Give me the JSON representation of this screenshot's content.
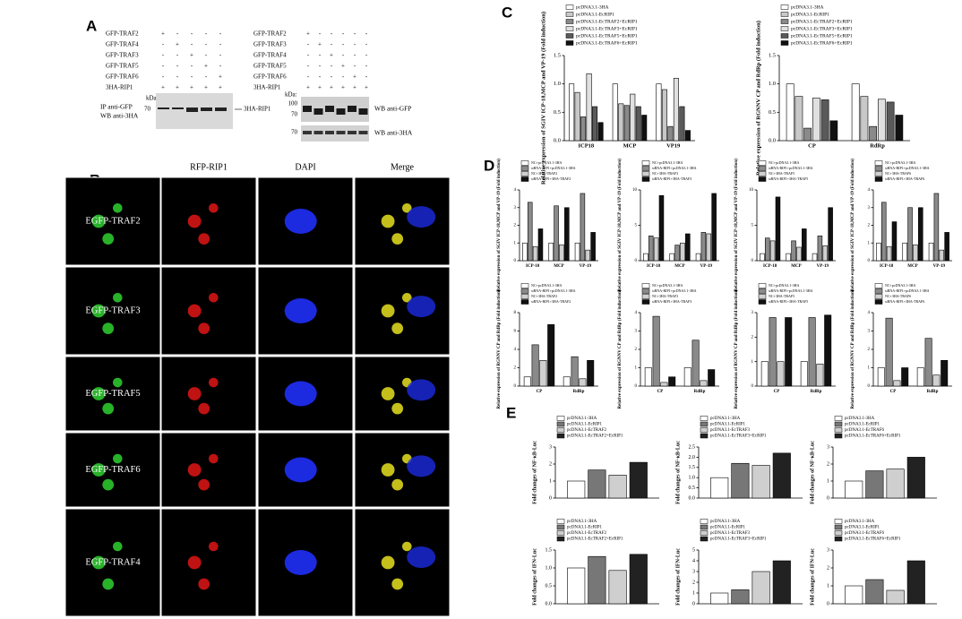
{
  "panel_labels": [
    "A",
    "B",
    "C",
    "D",
    "E"
  ],
  "blot_left": {
    "rows": [
      {
        "name": "GFP-TRAF2",
        "signs": [
          "+",
          "-",
          "-",
          "-",
          "-"
        ]
      },
      {
        "name": "GFP-TRAF4",
        "signs": [
          "-",
          "+",
          "-",
          "-",
          "-"
        ]
      },
      {
        "name": "GFP-TRAF3",
        "signs": [
          "-",
          "-",
          "+",
          "-",
          "-"
        ]
      },
      {
        "name": "GFP-TRAF5",
        "signs": [
          "-",
          "-",
          "-",
          "+",
          "-"
        ]
      },
      {
        "name": "GFP-TRAF6",
        "signs": [
          "-",
          "-",
          "-",
          "-",
          "+"
        ]
      },
      {
        "name": "3HA-RIP1",
        "signs": [
          "+",
          "+",
          "+",
          "+",
          "+"
        ]
      }
    ],
    "kda": "kDa:",
    "marker": "70",
    "ip": "IP anti-GFP",
    "wb": "WB anti-3HA",
    "band": "3HA-RIP1"
  },
  "blot_right": {
    "rows": [
      {
        "name": "GFP-TRAF2",
        "signs": [
          "+",
          "-",
          "-",
          "-",
          "-",
          "-"
        ]
      },
      {
        "name": "GFP-TRAF3",
        "signs": [
          "-",
          "+",
          "-",
          "-",
          "-",
          "-"
        ]
      },
      {
        "name": "GFP-TRAF4",
        "signs": [
          "-",
          "-",
          "+",
          "-",
          "-",
          "-"
        ]
      },
      {
        "name": "GFP-TRAF5",
        "signs": [
          "-",
          "-",
          "-",
          "+",
          "-",
          "-"
        ]
      },
      {
        "name": "GFP-TRAF6",
        "signs": [
          "-",
          "-",
          "-",
          "-",
          "+",
          "-"
        ]
      },
      {
        "name": "3HA-RIP1",
        "signs": [
          "+",
          "+",
          "+",
          "+",
          "+",
          "+"
        ]
      }
    ],
    "kda": "kDa:",
    "markers_top": [
      "100",
      "70"
    ],
    "wb_top": "WB anti-GFP",
    "marker_bottom": "70",
    "wb_bottom": "WB anti-3HA"
  },
  "microscopy": {
    "columns": [
      "RFP-RIP1",
      "DAPI",
      "Merge"
    ],
    "rows": [
      "EGFP-TRAF2",
      "EGFP-TRAF3",
      "EGFP-TRAF5",
      "EGFP-TRAF6",
      "EGFP-TRAF4"
    ]
  },
  "chart_data": [
    {
      "type": "bar",
      "y_label": "Relative expression of SGIV ICP-18,MCP and VP-19 (Fold induction)",
      "categories": [
        "ICP18",
        "MCP",
        "VP19"
      ],
      "ylim": [
        0,
        1.5
      ],
      "yticks": [
        {
          "value": 0,
          "label": "0.0"
        },
        {
          "value": 0.5,
          "label": "0.5"
        },
        {
          "value": 1,
          "label": "1.0"
        },
        {
          "value": 1.5,
          "label": "1.5"
        }
      ],
      "series": [
        {
          "name": "pcDNA3.1-3HA",
          "color": "#ffffff",
          "values": [
            1.0,
            1.0,
            1.0
          ]
        },
        {
          "name": "pcDNA3.1-EcRIP1",
          "color": "#c8c8c8",
          "values": [
            0.85,
            0.65,
            0.9
          ]
        },
        {
          "name": "pcDNA3.1-EcTRAF2+EcRIP1",
          "color": "#8a8a8a",
          "values": [
            0.42,
            0.62,
            0.25
          ]
        },
        {
          "name": "pcDNA3.1-EcTRAF3+EcRIP1",
          "color": "#e0e0e0",
          "values": [
            1.18,
            0.82,
            1.1
          ]
        },
        {
          "name": "pcDNA3.1-EcTRAF5+EcRIP1",
          "color": "#5a5a5a",
          "values": [
            0.6,
            0.6,
            0.6
          ]
        },
        {
          "name": "pcDNA3.1-EcTRAF6+EcRIP1",
          "color": "#111111",
          "values": [
            0.32,
            0.45,
            0.18
          ]
        }
      ]
    },
    {
      "type": "bar",
      "y_label": "Relative expression of RGNNV CP and RdRp (Fold induction)",
      "categories": [
        "CP",
        "RdRp"
      ],
      "ylim": [
        0,
        1.5
      ],
      "yticks": [
        {
          "value": 0,
          "label": "0.0"
        },
        {
          "value": 0.5,
          "label": "0.5"
        },
        {
          "value": 1,
          "label": "1.0"
        },
        {
          "value": 1.5,
          "label": "1.5"
        }
      ],
      "series": [
        {
          "name": "pcDNA3.1-3HA",
          "color": "#ffffff",
          "values": [
            1.0,
            1.0
          ]
        },
        {
          "name": "pcDNA3.1-EcRIP1",
          "color": "#c8c8c8",
          "values": [
            0.78,
            0.78
          ]
        },
        {
          "name": "pcDNA3.1-EcTRAF2+EcRIP1",
          "color": "#8a8a8a",
          "values": [
            0.22,
            0.25
          ]
        },
        {
          "name": "pcDNA3.1-EcTRAF3+EcRIP1",
          "color": "#e0e0e0",
          "values": [
            0.75,
            0.73
          ]
        },
        {
          "name": "pcDNA3.1-EcTRAF5+EcRIP1",
          "color": "#5a5a5a",
          "values": [
            0.72,
            0.68
          ]
        },
        {
          "name": "pcDNA3.1-EcTRAF6+EcRIP1",
          "color": "#111111",
          "values": [
            0.35,
            0.45
          ]
        }
      ]
    },
    {
      "type": "bar",
      "y_label": "Relative expression of SGIV ICP-18,MCP and VP-19 (Fold induction)",
      "categories": [
        "ICP-18",
        "MCP",
        "VP-19"
      ],
      "ylim": [
        0,
        4
      ],
      "yticks": [
        0,
        1,
        2,
        3,
        4
      ],
      "series": [
        {
          "name": "NC+pcDNA3.1-3HA",
          "color": "#ffffff",
          "values": [
            1,
            1,
            1
          ]
        },
        {
          "name": "siRNA-RIP1+pcDNA3.1-3HA",
          "color": "#8a8a8a",
          "values": [
            3.3,
            3.1,
            3.8
          ]
        },
        {
          "name": "NC+3HA-TRAF2",
          "color": "#d0d0d0",
          "values": [
            0.8,
            0.9,
            0.6
          ]
        },
        {
          "name": "siRNA-RIP1+3HA-TRAF2",
          "color": "#111111",
          "values": [
            1.8,
            3.0,
            1.6
          ]
        }
      ]
    },
    {
      "type": "bar",
      "y_label": "Relative expression of SGIV ICP-18,MCP and VP-19 (Fold induction)",
      "categories": [
        "ICP-18",
        "MCP",
        "VP-19"
      ],
      "ylim": [
        0,
        10
      ],
      "yticks": [
        0,
        5,
        10
      ],
      "series": [
        {
          "name": "NC+pcDNA3.1-3HA",
          "color": "#ffffff",
          "values": [
            1,
            1,
            1
          ]
        },
        {
          "name": "siRNA-RIP1+pcDNA3.1-3HA",
          "color": "#8a8a8a",
          "values": [
            3.5,
            2.2,
            4.0
          ]
        },
        {
          "name": "NC+3HA-TRAF3",
          "color": "#d0d0d0",
          "values": [
            3.2,
            2.5,
            3.8
          ]
        },
        {
          "name": "siRNA-RIP1+3HA-TRAF3",
          "color": "#111111",
          "values": [
            9.2,
            3.8,
            9.5
          ]
        }
      ]
    },
    {
      "type": "bar",
      "y_label": "Relative expression of SGIV ICP-18,MCP and VP-19 (Fold induction)",
      "categories": [
        "ICP-18",
        "MCP",
        "VP-19"
      ],
      "ylim": [
        0,
        10
      ],
      "yticks": [
        0,
        5,
        10
      ],
      "series": [
        {
          "name": "NC+pcDNA3.1-3HA",
          "color": "#ffffff",
          "values": [
            1,
            1,
            1
          ]
        },
        {
          "name": "siRNA-RIP1+pcDNA3.1-3HA",
          "color": "#8a8a8a",
          "values": [
            3.2,
            2.8,
            3.5
          ]
        },
        {
          "name": "NC+3HA-TRAF5",
          "color": "#d0d0d0",
          "values": [
            2.8,
            1.9,
            2.1
          ]
        },
        {
          "name": "siRNA-RIP1+3HA-TRAF5",
          "color": "#111111",
          "values": [
            9.0,
            4.5,
            7.5
          ]
        }
      ]
    },
    {
      "type": "bar",
      "y_label": "Relative expression of SGIV ICP-18,MCP and VP-19 (Fold induction)",
      "categories": [
        "ICP-18",
        "MCP",
        "VP-19"
      ],
      "ylim": [
        0,
        4
      ],
      "yticks": [
        0,
        1,
        2,
        3,
        4
      ],
      "series": [
        {
          "name": "NC+pcDNA3.1-3HA",
          "color": "#ffffff",
          "values": [
            1,
            1,
            1
          ]
        },
        {
          "name": "siRNA-RIP1+pcDNA3.1-3HA",
          "color": "#8a8a8a",
          "values": [
            3.3,
            3.0,
            3.8
          ]
        },
        {
          "name": "NC+3HA-TRAF6",
          "color": "#d0d0d0",
          "values": [
            0.8,
            0.9,
            0.6
          ]
        },
        {
          "name": "siRNA-RIP1+3HA-TRAF6",
          "color": "#111111",
          "values": [
            2.2,
            3.0,
            1.6
          ]
        }
      ]
    },
    {
      "type": "bar",
      "y_label": "Relative expression of RGNNV CP and RdRp (Fold induction)",
      "categories": [
        "CP",
        "RdRp"
      ],
      "ylim": [
        0,
        8
      ],
      "yticks": [
        0,
        2,
        4,
        6,
        8
      ],
      "series": [
        {
          "name": "NC+pcDNA3.1-3HA",
          "color": "#ffffff",
          "values": [
            1,
            1
          ]
        },
        {
          "name": "siRNA-RIP1+pcDNA3.1-3HA",
          "color": "#8a8a8a",
          "values": [
            4.5,
            3.2
          ]
        },
        {
          "name": "NC+3HA-TRAF2",
          "color": "#d0d0d0",
          "values": [
            2.8,
            0.8
          ]
        },
        {
          "name": "siRNA-RIP1+3HA-TRAF2",
          "color": "#111111",
          "values": [
            6.7,
            2.8
          ]
        }
      ]
    },
    {
      "type": "bar",
      "y_label": "Relative expression of RGNNV CP and RdRp (Fold induction)",
      "categories": [
        "CP",
        "RdRp"
      ],
      "ylim": [
        0,
        4
      ],
      "yticks": [
        0,
        1,
        2,
        3,
        4
      ],
      "series": [
        {
          "name": "NC+pcDNA3.1-3HA",
          "color": "#ffffff",
          "values": [
            1,
            1
          ]
        },
        {
          "name": "siRNA-RIP1+pcDNA3.1-3HA",
          "color": "#8a8a8a",
          "values": [
            3.8,
            2.5
          ]
        },
        {
          "name": "NC+3HA-TRAF3",
          "color": "#d0d0d0",
          "values": [
            0.2,
            0.3
          ]
        },
        {
          "name": "siRNA-RIP1+3HA-TRAF3",
          "color": "#111111",
          "values": [
            0.5,
            0.9
          ]
        }
      ]
    },
    {
      "type": "bar",
      "y_label": "Relative expression of RGNNV CP and RdRp (Fold induction)",
      "categories": [
        "CP",
        "RdRp"
      ],
      "ylim": [
        0,
        3
      ],
      "yticks": [
        0,
        1,
        2,
        3
      ],
      "series": [
        {
          "name": "NC+pcDNA3.1-3HA",
          "color": "#ffffff",
          "values": [
            1,
            1
          ]
        },
        {
          "name": "siRNA-RIP1+pcDNA3.1-3HA",
          "color": "#8a8a8a",
          "values": [
            2.8,
            2.8
          ]
        },
        {
          "name": "NC+3HA-TRAF5",
          "color": "#d0d0d0",
          "values": [
            1.0,
            0.9
          ]
        },
        {
          "name": "siRNA-RIP1+3HA-TRAF5",
          "color": "#111111",
          "values": [
            2.8,
            2.9
          ]
        }
      ]
    },
    {
      "type": "bar",
      "y_label": "Relative expression of RGNNV CP and RdRp (Fold induction)",
      "categories": [
        "CP",
        "RdRp"
      ],
      "ylim": [
        0,
        4
      ],
      "yticks": [
        0,
        1,
        2,
        3,
        4
      ],
      "series": [
        {
          "name": "NC+pcDNA3.1-3HA",
          "color": "#ffffff",
          "values": [
            1,
            1
          ]
        },
        {
          "name": "siRNA-RIP1+pcDNA3.1-3HA",
          "color": "#8a8a8a",
          "values": [
            3.7,
            2.6
          ]
        },
        {
          "name": "NC+3HA-TRAF6",
          "color": "#d0d0d0",
          "values": [
            0.3,
            0.6
          ]
        },
        {
          "name": "siRNA-RIP1+3HA-TRAF6",
          "color": "#111111",
          "values": [
            1.0,
            1.4
          ]
        }
      ]
    },
    {
      "type": "bar",
      "y_label": "Fold changes of NF-κB-Luc",
      "categories": [
        null
      ],
      "ylim": [
        0,
        3
      ],
      "yticks": [
        0,
        1,
        2,
        3
      ],
      "series": [
        {
          "name": "pcDNA3.1-3HA",
          "color": "#ffffff",
          "values": [
            1.0
          ]
        },
        {
          "name": "pcDNA3.1-EcRIP1",
          "color": "#777777",
          "values": [
            1.65
          ]
        },
        {
          "name": "pcDNA3.1-EcTRAF2",
          "color": "#cfcfcf",
          "values": [
            1.35
          ]
        },
        {
          "name": "pcDNA3.1-EcTRAF2+EcRIP1",
          "color": "#222222",
          "values": [
            2.1
          ]
        }
      ]
    },
    {
      "type": "bar",
      "y_label": "Fold changes of NF-κB-Luc",
      "categories": [
        null
      ],
      "ylim": [
        0,
        2.5
      ],
      "yticks": [
        {
          "value": 0,
          "label": "0.0"
        },
        {
          "value": 0.5,
          "label": "0.5"
        },
        {
          "value": 1,
          "label": "1.0"
        },
        {
          "value": 1.5,
          "label": "1.5"
        },
        {
          "value": 2,
          "label": "2.0"
        },
        {
          "value": 2.5,
          "label": "2.5"
        }
      ],
      "series": [
        {
          "name": "pcDNA3.1-3HA",
          "color": "#ffffff",
          "values": [
            1.0
          ]
        },
        {
          "name": "pcDNA3.1-EcRIP1",
          "color": "#777777",
          "values": [
            1.7
          ]
        },
        {
          "name": "pcDNA3.1-EcTRAF3",
          "color": "#cfcfcf",
          "values": [
            1.6
          ]
        },
        {
          "name": "pcDNA3.1-EcTRAF3+EcRIP1",
          "color": "#222222",
          "values": [
            2.2
          ]
        }
      ]
    },
    {
      "type": "bar",
      "y_label": "Fold changes of NF-κB-Luc",
      "categories": [
        null
      ],
      "ylim": [
        0,
        3
      ],
      "yticks": [
        0,
        1,
        2,
        3
      ],
      "series": [
        {
          "name": "pcDNA3.1-3HA",
          "color": "#ffffff",
          "values": [
            1.0
          ]
        },
        {
          "name": "pcDNA3.1-EcRIP1",
          "color": "#777777",
          "values": [
            1.6
          ]
        },
        {
          "name": "pcDNA3.1-EcTRAF6",
          "color": "#cfcfcf",
          "values": [
            1.7
          ]
        },
        {
          "name": "pcDNA3.1-EcTRAF6+EcRIP1",
          "color": "#222222",
          "values": [
            2.4
          ]
        }
      ]
    },
    {
      "type": "bar",
      "y_label": "Fold changes of IFN-Luc",
      "categories": [
        null
      ],
      "ylim": [
        0,
        1.5
      ],
      "yticks": [
        {
          "value": 0,
          "label": "0.0"
        },
        {
          "value": 0.5,
          "label": "0.5"
        },
        {
          "value": 1,
          "label": "1.0"
        },
        {
          "value": 1.5,
          "label": "1.5"
        }
      ],
      "series": [
        {
          "name": "pcDNA3.1-3HA",
          "color": "#ffffff",
          "values": [
            1.0
          ]
        },
        {
          "name": "pcDNA3.1-EcRIP1",
          "color": "#777777",
          "values": [
            1.32
          ]
        },
        {
          "name": "pcDNA3.1-EcTRAF2",
          "color": "#cfcfcf",
          "values": [
            0.93
          ]
        },
        {
          "name": "pcDNA3.1-EcTRAF2+EcRIP1",
          "color": "#222222",
          "values": [
            1.38
          ]
        }
      ]
    },
    {
      "type": "bar",
      "y_label": "Fold changes of IFN-Luc",
      "categories": [
        null
      ],
      "ylim": [
        0,
        5
      ],
      "yticks": [
        0,
        1,
        2,
        3,
        4,
        5
      ],
      "series": [
        {
          "name": "pcDNA3.1-3HA",
          "color": "#ffffff",
          "values": [
            1.0
          ]
        },
        {
          "name": "pcDNA3.1-EcRIP1",
          "color": "#777777",
          "values": [
            1.3
          ]
        },
        {
          "name": "pcDNA3.1-EcTRAF3",
          "color": "#cfcfcf",
          "values": [
            3.0
          ]
        },
        {
          "name": "pcDNA3.1-EcTRAF3+EcRIP1",
          "color": "#222222",
          "values": [
            4.0
          ]
        }
      ]
    },
    {
      "type": "bar",
      "y_label": "Fold changes of IFN-Luc",
      "categories": [
        null
      ],
      "ylim": [
        0,
        3
      ],
      "yticks": [
        0,
        1,
        2,
        3
      ],
      "series": [
        {
          "name": "pcDNA3.1-3HA",
          "color": "#ffffff",
          "values": [
            1.0
          ]
        },
        {
          "name": "pcDNA3.1-EcRIP1",
          "color": "#777777",
          "values": [
            1.35
          ]
        },
        {
          "name": "pcDNA3.1-EcTRAF6",
          "color": "#cfcfcf",
          "values": [
            0.75
          ]
        },
        {
          "name": "pcDNA3.1-EcTRAF6+EcRIP1",
          "color": "#222222",
          "values": [
            2.4
          ]
        }
      ]
    }
  ]
}
